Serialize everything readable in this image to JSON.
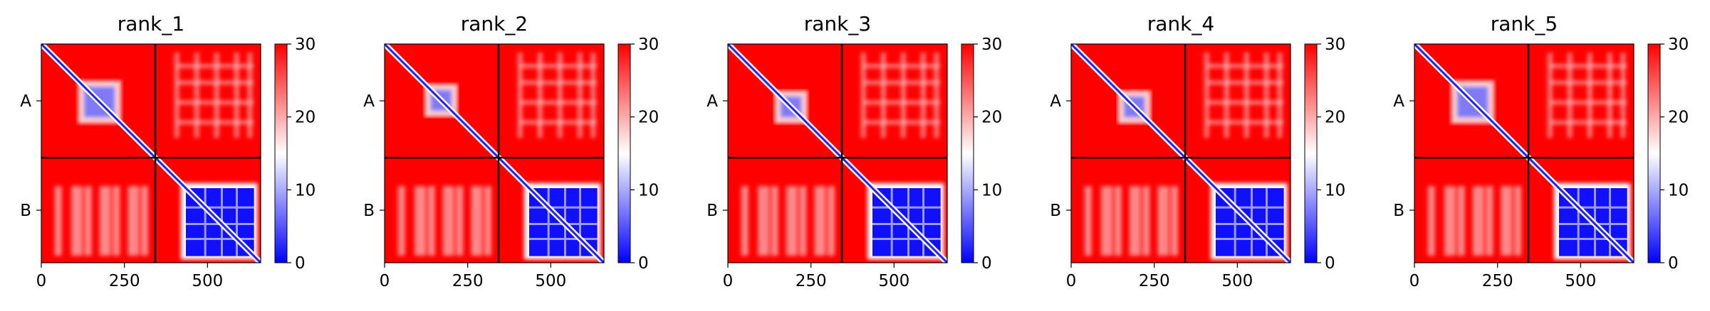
{
  "chart_data": [
    {
      "type": "heatmap",
      "title": "rank_1",
      "x_ticks": [
        "0",
        "250",
        "500"
      ],
      "y_ticks": [
        "A",
        "B"
      ],
      "x_tick_values": [
        0,
        250,
        500
      ],
      "axis_range": [
        0,
        660
      ],
      "chain_boundary": 343,
      "chains": [
        {
          "name": "A",
          "start": 0,
          "end": 343
        },
        {
          "name": "B",
          "start": 343,
          "end": 660
        }
      ],
      "colorbar": {
        "ticks": [
          "0",
          "10",
          "20",
          "30"
        ],
        "min": 0,
        "max": 30,
        "colormap": "bwr"
      },
      "matrix_features": {
        "diagonal": "low (blue) along full diagonal",
        "A_block": "mostly high with low-error patches around residues 110-240",
        "B_block": "low error (blue) over residues ~430-640",
        "off_diagonal": "high (red)"
      }
    },
    {
      "type": "heatmap",
      "title": "rank_2",
      "x_ticks": [
        "0",
        "250",
        "500"
      ],
      "y_ticks": [
        "A",
        "B"
      ],
      "x_tick_values": [
        0,
        250,
        500
      ],
      "axis_range": [
        0,
        660
      ],
      "chain_boundary": 343,
      "chains": [
        {
          "name": "A",
          "start": 0,
          "end": 343
        },
        {
          "name": "B",
          "start": 343,
          "end": 660
        }
      ],
      "colorbar": {
        "ticks": [
          "0",
          "10",
          "20",
          "30"
        ],
        "min": 0,
        "max": 30,
        "colormap": "bwr"
      },
      "matrix_features": {
        "diagonal": "low (blue) along full diagonal",
        "A_block": "mostly high with low-error patches around residues 120-220",
        "B_block": "low error (blue) over residues ~430-640",
        "off_diagonal": "high (red)"
      }
    },
    {
      "type": "heatmap",
      "title": "rank_3",
      "x_ticks": [
        "0",
        "250",
        "500"
      ],
      "y_ticks": [
        "A",
        "B"
      ],
      "x_tick_values": [
        0,
        250,
        500
      ],
      "axis_range": [
        0,
        660
      ],
      "chain_boundary": 343,
      "chains": [
        {
          "name": "A",
          "start": 0,
          "end": 343
        },
        {
          "name": "B",
          "start": 343,
          "end": 660
        }
      ],
      "colorbar": {
        "ticks": [
          "0",
          "10",
          "20",
          "30"
        ],
        "min": 0,
        "max": 30,
        "colormap": "bwr"
      },
      "matrix_features": {
        "diagonal": "low (blue) along full diagonal",
        "A_block": "mostly high with low-error patches around residues 140-240",
        "B_block": "low error (blue) over residues ~430-640",
        "off_diagonal": "high (red)"
      }
    },
    {
      "type": "heatmap",
      "title": "rank_4",
      "x_ticks": [
        "0",
        "250",
        "500"
      ],
      "y_ticks": [
        "A",
        "B"
      ],
      "x_tick_values": [
        0,
        250,
        500
      ],
      "axis_range": [
        0,
        660
      ],
      "chain_boundary": 343,
      "chains": [
        {
          "name": "A",
          "start": 0,
          "end": 343
        },
        {
          "name": "B",
          "start": 343,
          "end": 660
        }
      ],
      "colorbar": {
        "ticks": [
          "0",
          "10",
          "20",
          "30"
        ],
        "min": 0,
        "max": 30,
        "colormap": "bwr"
      },
      "matrix_features": {
        "diagonal": "low (blue) along full diagonal",
        "A_block": "mostly high with low-error patches around residues 140-240",
        "B_block": "low error (blue) over residues ~430-640",
        "off_diagonal": "high (red)"
      }
    },
    {
      "type": "heatmap",
      "title": "rank_5",
      "x_ticks": [
        "0",
        "250",
        "500"
      ],
      "y_ticks": [
        "A",
        "B"
      ],
      "x_tick_values": [
        0,
        250,
        500
      ],
      "axis_range": [
        0,
        660
      ],
      "chain_boundary": 343,
      "chains": [
        {
          "name": "A",
          "start": 0,
          "end": 343
        },
        {
          "name": "B",
          "start": 343,
          "end": 660
        }
      ],
      "colorbar": {
        "ticks": [
          "0",
          "10",
          "20",
          "30"
        ],
        "min": 0,
        "max": 30,
        "colormap": "bwr"
      },
      "matrix_features": {
        "diagonal": "low (blue) along full diagonal",
        "A_block": "mostly high with low-error patches around residues 110-240",
        "B_block": "low error (blue) over residues ~430-640",
        "off_diagonal": "high (red)"
      }
    }
  ]
}
